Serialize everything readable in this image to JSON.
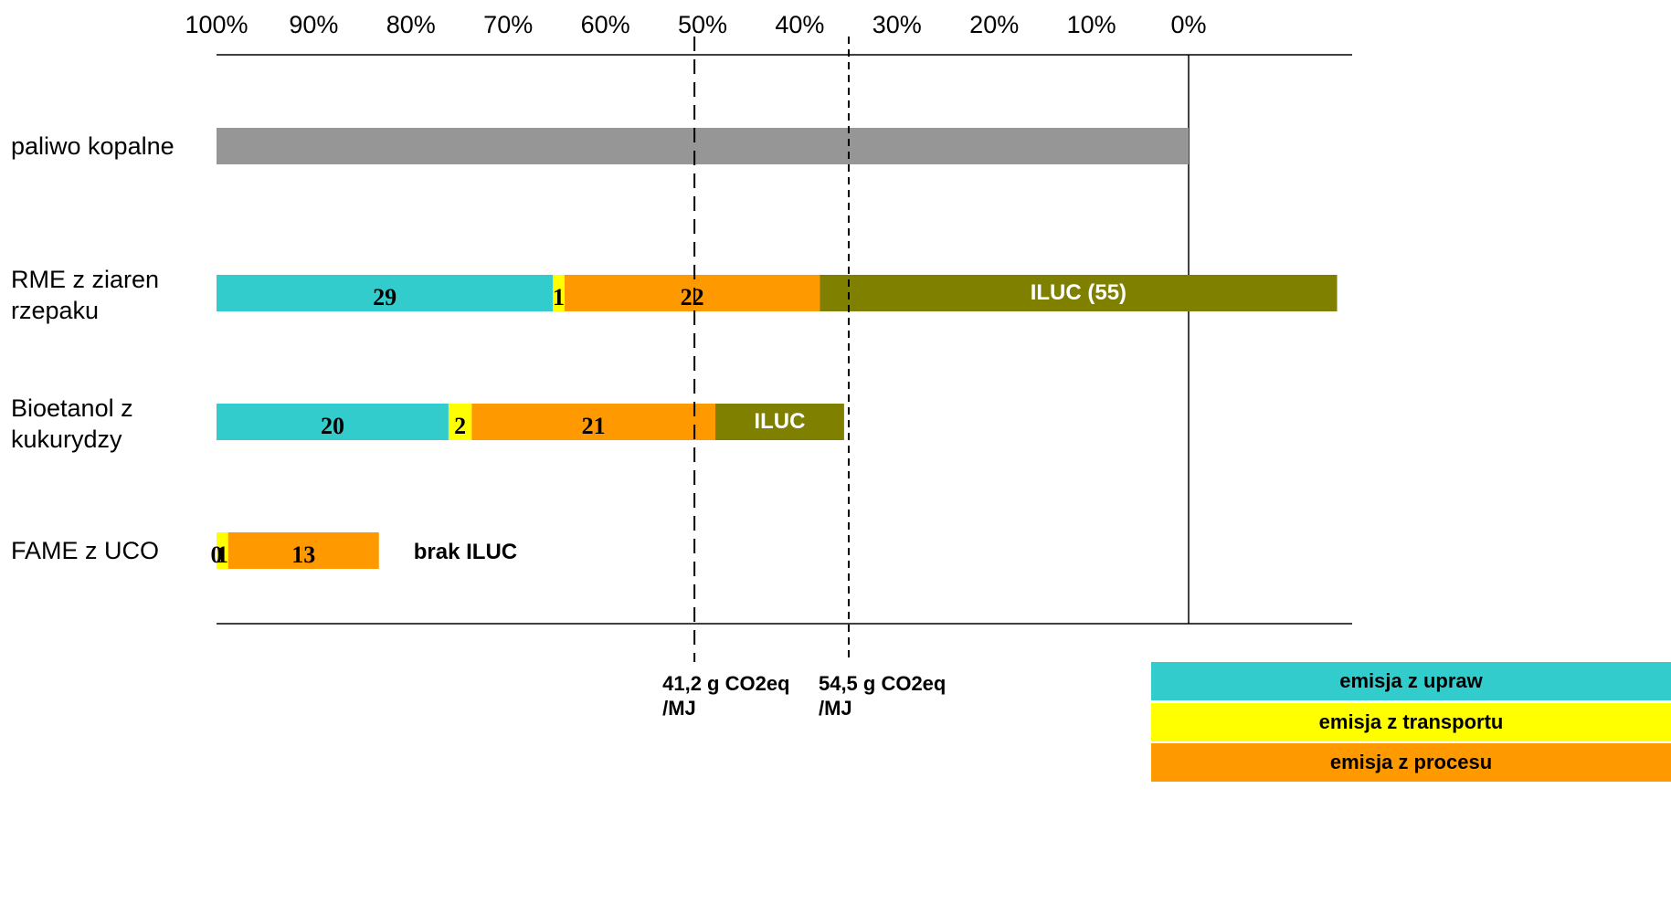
{
  "chart_data": {
    "type": "bar",
    "orientation": "horizontal-stacked",
    "xaxis": {
      "ticks": [
        "100%",
        "90%",
        "80%",
        "70%",
        "60%",
        "50%",
        "40%",
        "30%",
        "20%",
        "10%",
        "0%"
      ],
      "range": [
        100,
        0
      ],
      "unit": "g CO2eq/MJ",
      "baseline_value": 83.8
    },
    "categories": [
      {
        "label": "paliwo kopalne",
        "lines": [
          "paliwo kopalne"
        ]
      },
      {
        "label": "RME z ziaren rzepaku",
        "lines": [
          "RME z ziaren",
          "rzepaku"
        ]
      },
      {
        "label": "Bioetanol z kukurydzy",
        "lines": [
          "Bioetanol z",
          "kukurydzy"
        ]
      },
      {
        "label": "FAME z UCO",
        "lines": [
          "FAME z UCO"
        ]
      }
    ],
    "series": [
      {
        "key": "fossil",
        "color": "#969696",
        "values": [
          83.8,
          null,
          null,
          null
        ]
      },
      {
        "name": "emisja z upraw",
        "key": "upraw",
        "color": "#33CCCC",
        "values": [
          null,
          29,
          20,
          0
        ],
        "labels": [
          "",
          "29",
          "20",
          "0"
        ]
      },
      {
        "name": "emisja z transportu",
        "key": "transport",
        "color": "#FFFF00",
        "values": [
          null,
          1,
          2,
          1
        ],
        "labels": [
          "",
          "1",
          "2",
          "1"
        ]
      },
      {
        "name": "emisja z procesu",
        "key": "procesu",
        "color": "#FF9900",
        "values": [
          null,
          22,
          21,
          13
        ],
        "labels": [
          "",
          "22",
          "21",
          "13"
        ]
      },
      {
        "key": "iluc",
        "color": "#808000",
        "values": [
          null,
          44.6,
          11.1,
          null
        ],
        "labels": [
          "",
          "ILUC (55)",
          "ILUC",
          ""
        ]
      }
    ],
    "annotations": [
      {
        "text": "brak ILUC",
        "category": "FAME z UCO"
      }
    ],
    "reference_lines": [
      {
        "value": 41.2,
        "label_lines": [
          "41,2 g CO2eq",
          "/MJ"
        ],
        "style": "dashed-long"
      },
      {
        "value": 54.5,
        "label_lines": [
          "54,5 g CO2eq",
          "/MJ"
        ],
        "style": "dashed-short"
      }
    ],
    "legend": {
      "placement": "bottom-right",
      "entries": [
        {
          "label": "emisja z upraw",
          "color": "#33CCCC"
        },
        {
          "label": "emisja z transportu",
          "color": "#FFFF00"
        },
        {
          "label": "emisja z procesu",
          "color": "#FF9900"
        }
      ]
    },
    "grid": false
  }
}
